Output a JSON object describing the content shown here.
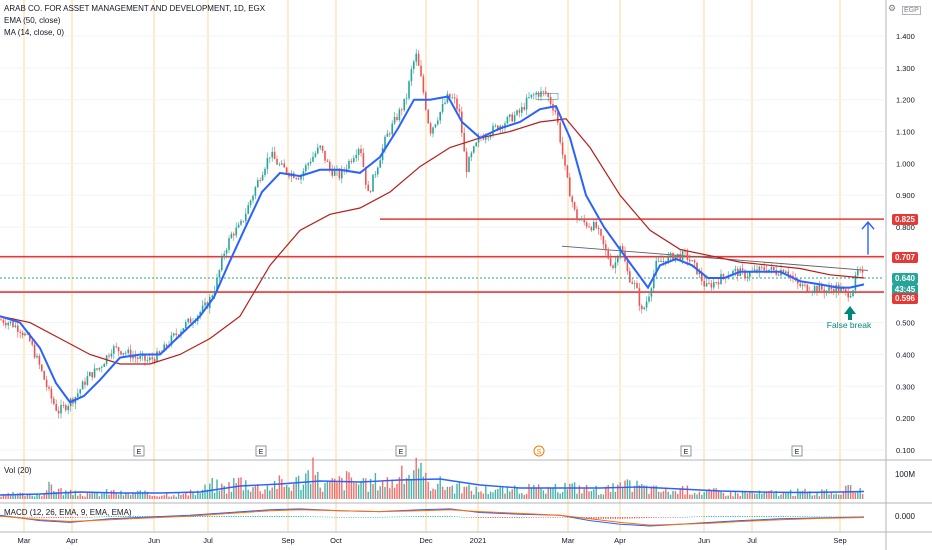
{
  "header": {
    "title": "ARAB CO. FOR ASSET MANAGEMENT AND DEVELOPMENT, 1D, EGX",
    "ema_label": "EMA (50, close)",
    "ma_label": "MA (14, close, 0)",
    "currency": "EGP"
  },
  "volume_pane": {
    "label": "Vol (20)",
    "axis_label": "100M"
  },
  "macd_pane": {
    "label": "MACD (12, 26, EMA, 9, EMA, EMA)",
    "axis_label": "0.000"
  },
  "levels": {
    "resistance_high": "0.825",
    "resistance": "0.707",
    "support": "0.596",
    "last_price": "0.640",
    "countdown": "43:45"
  },
  "annotation": {
    "text": "False break"
  },
  "event_markers": [
    "E",
    "E",
    "E",
    "S",
    "E",
    "E"
  ],
  "colors": {
    "up": "#26a69a",
    "down": "#ef5350",
    "ma": "#2962ff",
    "ema": "#b71c1c",
    "level_line": "#e53935",
    "trendline": "#5d606b",
    "arrow": "#2962ff",
    "annotation": "#00897b",
    "session_line": "#ffcc80"
  },
  "chart_data": {
    "type": "candlestick",
    "title": "ARAB CO. FOR ASSET MANAGEMENT AND DEVELOPMENT, 1D, EGX",
    "y_ticks": [
      "1.400",
      "1.300",
      "1.200",
      "1.100",
      "1.000",
      "0.900",
      "0.800",
      "0.700",
      "0.600",
      "0.500",
      "0.400",
      "0.300",
      "0.200",
      "0.100"
    ],
    "ylim": [
      0.1,
      1.43
    ],
    "x_ticks": [
      "Mar",
      "Apr",
      "Jun",
      "Jul",
      "Sep",
      "Oct",
      "Dec",
      "2021",
      "Mar",
      "Apr",
      "Jun",
      "Jul",
      "Sep"
    ],
    "price_path": [
      [
        0,
        0.51
      ],
      [
        10,
        0.5
      ],
      [
        20,
        0.48
      ],
      [
        30,
        0.44
      ],
      [
        40,
        0.36
      ],
      [
        50,
        0.27
      ],
      [
        58,
        0.22
      ],
      [
        66,
        0.24
      ],
      [
        76,
        0.27
      ],
      [
        88,
        0.33
      ],
      [
        100,
        0.36
      ],
      [
        112,
        0.42
      ],
      [
        124,
        0.41
      ],
      [
        136,
        0.39
      ],
      [
        148,
        0.38
      ],
      [
        160,
        0.4
      ],
      [
        172,
        0.45
      ],
      [
        184,
        0.49
      ],
      [
        196,
        0.52
      ],
      [
        208,
        0.56
      ],
      [
        216,
        0.62
      ],
      [
        224,
        0.72
      ],
      [
        232,
        0.78
      ],
      [
        240,
        0.8
      ],
      [
        250,
        0.88
      ],
      [
        260,
        0.96
      ],
      [
        270,
        1.03
      ],
      [
        280,
        0.99
      ],
      [
        290,
        0.97
      ],
      [
        300,
        0.96
      ],
      [
        310,
        1.01
      ],
      [
        320,
        1.05
      ],
      [
        330,
        0.98
      ],
      [
        340,
        0.96
      ],
      [
        350,
        1.01
      ],
      [
        360,
        1.06
      ],
      [
        368,
        0.9
      ],
      [
        376,
        0.98
      ],
      [
        386,
        1.08
      ],
      [
        396,
        1.14
      ],
      [
        406,
        1.2
      ],
      [
        412,
        1.3
      ],
      [
        416,
        1.34
      ],
      [
        422,
        1.25
      ],
      [
        430,
        1.1
      ],
      [
        440,
        1.16
      ],
      [
        448,
        1.21
      ],
      [
        454,
        1.2
      ],
      [
        460,
        1.15
      ],
      [
        466,
        0.98
      ],
      [
        472,
        1.03
      ],
      [
        480,
        1.08
      ],
      [
        490,
        1.1
      ],
      [
        500,
        1.12
      ],
      [
        510,
        1.14
      ],
      [
        520,
        1.16
      ],
      [
        528,
        1.2
      ],
      [
        536,
        1.22
      ],
      [
        546,
        1.22
      ],
      [
        556,
        1.16
      ],
      [
        566,
        0.96
      ],
      [
        576,
        0.83
      ],
      [
        586,
        0.81
      ],
      [
        596,
        0.8
      ],
      [
        606,
        0.72
      ],
      [
        614,
        0.67
      ],
      [
        620,
        0.75
      ],
      [
        628,
        0.65
      ],
      [
        636,
        0.61
      ],
      [
        642,
        0.53
      ],
      [
        648,
        0.58
      ],
      [
        656,
        0.68
      ],
      [
        666,
        0.7
      ],
      [
        676,
        0.71
      ],
      [
        686,
        0.71
      ],
      [
        696,
        0.67
      ],
      [
        706,
        0.61
      ],
      [
        716,
        0.63
      ],
      [
        726,
        0.65
      ],
      [
        736,
        0.66
      ],
      [
        746,
        0.65
      ],
      [
        756,
        0.66
      ],
      [
        766,
        0.67
      ],
      [
        776,
        0.66
      ],
      [
        786,
        0.67
      ],
      [
        796,
        0.62
      ],
      [
        806,
        0.61
      ],
      [
        816,
        0.61
      ],
      [
        826,
        0.6
      ],
      [
        836,
        0.61
      ],
      [
        846,
        0.59
      ],
      [
        852,
        0.6
      ],
      [
        858,
        0.66
      ],
      [
        864,
        0.64
      ]
    ],
    "ma_path": [
      [
        0,
        0.52
      ],
      [
        20,
        0.5
      ],
      [
        40,
        0.42
      ],
      [
        56,
        0.31
      ],
      [
        70,
        0.25
      ],
      [
        84,
        0.27
      ],
      [
        100,
        0.32
      ],
      [
        120,
        0.39
      ],
      [
        140,
        0.4
      ],
      [
        160,
        0.4
      ],
      [
        180,
        0.46
      ],
      [
        200,
        0.52
      ],
      [
        214,
        0.58
      ],
      [
        228,
        0.68
      ],
      [
        244,
        0.79
      ],
      [
        262,
        0.91
      ],
      [
        280,
        0.97
      ],
      [
        300,
        0.96
      ],
      [
        320,
        0.98
      ],
      [
        340,
        0.98
      ],
      [
        360,
        0.97
      ],
      [
        380,
        1.02
      ],
      [
        398,
        1.11
      ],
      [
        414,
        1.2
      ],
      [
        430,
        1.2
      ],
      [
        448,
        1.21
      ],
      [
        462,
        1.13
      ],
      [
        480,
        1.08
      ],
      [
        500,
        1.11
      ],
      [
        520,
        1.13
      ],
      [
        540,
        1.17
      ],
      [
        556,
        1.18
      ],
      [
        570,
        1.08
      ],
      [
        586,
        0.9
      ],
      [
        604,
        0.8
      ],
      [
        620,
        0.73
      ],
      [
        634,
        0.67
      ],
      [
        648,
        0.61
      ],
      [
        660,
        0.68
      ],
      [
        676,
        0.7
      ],
      [
        692,
        0.68
      ],
      [
        708,
        0.64
      ],
      [
        724,
        0.64
      ],
      [
        740,
        0.66
      ],
      [
        760,
        0.66
      ],
      [
        780,
        0.66
      ],
      [
        800,
        0.63
      ],
      [
        820,
        0.62
      ],
      [
        838,
        0.61
      ],
      [
        850,
        0.61
      ],
      [
        864,
        0.62
      ]
    ],
    "ema_path": [
      [
        0,
        0.52
      ],
      [
        30,
        0.5
      ],
      [
        60,
        0.45
      ],
      [
        90,
        0.4
      ],
      [
        120,
        0.37
      ],
      [
        150,
        0.37
      ],
      [
        180,
        0.4
      ],
      [
        210,
        0.45
      ],
      [
        240,
        0.52
      ],
      [
        270,
        0.68
      ],
      [
        300,
        0.79
      ],
      [
        330,
        0.84
      ],
      [
        360,
        0.86
      ],
      [
        390,
        0.91
      ],
      [
        420,
        0.99
      ],
      [
        450,
        1.05
      ],
      [
        480,
        1.08
      ],
      [
        510,
        1.1
      ],
      [
        540,
        1.13
      ],
      [
        566,
        1.14
      ],
      [
        590,
        1.05
      ],
      [
        620,
        0.9
      ],
      [
        650,
        0.79
      ],
      [
        680,
        0.73
      ],
      [
        710,
        0.71
      ],
      [
        740,
        0.69
      ],
      [
        770,
        0.68
      ],
      [
        800,
        0.67
      ],
      [
        830,
        0.65
      ],
      [
        864,
        0.64
      ]
    ],
    "trendline": [
      [
        562,
        0.74
      ],
      [
        868,
        0.664
      ]
    ],
    "support_line": [
      [
        0,
        0.596
      ],
      [
        884,
        0.596
      ]
    ],
    "resistance_line": [
      [
        0,
        0.707
      ],
      [
        884,
        0.707
      ]
    ],
    "resistance_high_line": [
      [
        380,
        0.825
      ],
      [
        884,
        0.825
      ]
    ],
    "last_price": 0.64,
    "volume_series": [
      [
        0,
        6
      ],
      [
        14,
        10
      ],
      [
        30,
        8
      ],
      [
        44,
        14
      ],
      [
        52,
        30
      ],
      [
        60,
        18
      ],
      [
        72,
        12
      ],
      [
        88,
        10
      ],
      [
        100,
        12
      ],
      [
        112,
        16
      ],
      [
        126,
        10
      ],
      [
        140,
        14
      ],
      [
        152,
        8
      ],
      [
        168,
        12
      ],
      [
        184,
        10
      ],
      [
        200,
        16
      ],
      [
        212,
        30
      ],
      [
        226,
        24
      ],
      [
        238,
        40
      ],
      [
        248,
        34
      ],
      [
        262,
        22
      ],
      [
        276,
        36
      ],
      [
        288,
        28
      ],
      [
        300,
        40
      ],
      [
        312,
        60
      ],
      [
        322,
        30
      ],
      [
        336,
        34
      ],
      [
        350,
        44
      ],
      [
        364,
        28
      ],
      [
        378,
        40
      ],
      [
        392,
        36
      ],
      [
        406,
        50
      ],
      [
        414,
        68
      ],
      [
        424,
        40
      ],
      [
        438,
        34
      ],
      [
        452,
        26
      ],
      [
        466,
        22
      ],
      [
        480,
        18
      ],
      [
        494,
        22
      ],
      [
        508,
        18
      ],
      [
        522,
        20
      ],
      [
        536,
        22
      ],
      [
        550,
        16
      ],
      [
        564,
        28
      ],
      [
        578,
        24
      ],
      [
        592,
        20
      ],
      [
        606,
        20
      ],
      [
        620,
        24
      ],
      [
        634,
        30
      ],
      [
        648,
        22
      ],
      [
        662,
        18
      ],
      [
        676,
        16
      ],
      [
        690,
        20
      ],
      [
        704,
        14
      ],
      [
        718,
        16
      ],
      [
        732,
        12
      ],
      [
        746,
        14
      ],
      [
        760,
        12
      ],
      [
        774,
        14
      ],
      [
        788,
        12
      ],
      [
        802,
        16
      ],
      [
        816,
        12
      ],
      [
        830,
        14
      ],
      [
        844,
        18
      ],
      [
        858,
        22
      ]
    ],
    "volume_ma": [
      [
        0,
        8
      ],
      [
        40,
        10
      ],
      [
        80,
        14
      ],
      [
        120,
        12
      ],
      [
        160,
        12
      ],
      [
        200,
        14
      ],
      [
        240,
        26
      ],
      [
        280,
        30
      ],
      [
        320,
        36
      ],
      [
        360,
        34
      ],
      [
        400,
        38
      ],
      [
        440,
        40
      ],
      [
        480,
        28
      ],
      [
        520,
        22
      ],
      [
        560,
        22
      ],
      [
        600,
        22
      ],
      [
        640,
        24
      ],
      [
        680,
        20
      ],
      [
        720,
        16
      ],
      [
        760,
        14
      ],
      [
        800,
        13
      ],
      [
        840,
        14
      ],
      [
        864,
        15
      ]
    ],
    "macd_line": [
      [
        0,
        2
      ],
      [
        40,
        -4
      ],
      [
        70,
        -6
      ],
      [
        110,
        -2
      ],
      [
        150,
        0
      ],
      [
        190,
        2
      ],
      [
        230,
        5
      ],
      [
        270,
        8
      ],
      [
        300,
        9
      ],
      [
        340,
        7
      ],
      [
        380,
        6
      ],
      [
        420,
        8
      ],
      [
        450,
        9
      ],
      [
        480,
        5
      ],
      [
        520,
        3
      ],
      [
        560,
        2
      ],
      [
        590,
        -4
      ],
      [
        620,
        -8
      ],
      [
        650,
        -10
      ],
      [
        680,
        -8
      ],
      [
        710,
        -6
      ],
      [
        740,
        -4
      ],
      [
        780,
        -2
      ],
      [
        820,
        -1
      ],
      [
        864,
        0
      ]
    ],
    "signal_line": [
      [
        0,
        1
      ],
      [
        40,
        -3
      ],
      [
        70,
        -5
      ],
      [
        110,
        -3
      ],
      [
        150,
        -1
      ],
      [
        190,
        1
      ],
      [
        230,
        4
      ],
      [
        270,
        7
      ],
      [
        300,
        8
      ],
      [
        340,
        7
      ],
      [
        380,
        6
      ],
      [
        420,
        7
      ],
      [
        450,
        8
      ],
      [
        480,
        6
      ],
      [
        520,
        4
      ],
      [
        560,
        2
      ],
      [
        590,
        -2
      ],
      [
        620,
        -6
      ],
      [
        650,
        -9
      ],
      [
        680,
        -8
      ],
      [
        710,
        -7
      ],
      [
        740,
        -5
      ],
      [
        780,
        -3
      ],
      [
        820,
        -1.5
      ],
      [
        864,
        -0.5
      ]
    ],
    "event_x": [
      139,
      261,
      401,
      539,
      686,
      797
    ],
    "session_x": [
      24,
      72,
      154,
      208,
      288,
      336,
      426,
      478,
      568,
      620,
      704,
      752,
      840
    ]
  }
}
